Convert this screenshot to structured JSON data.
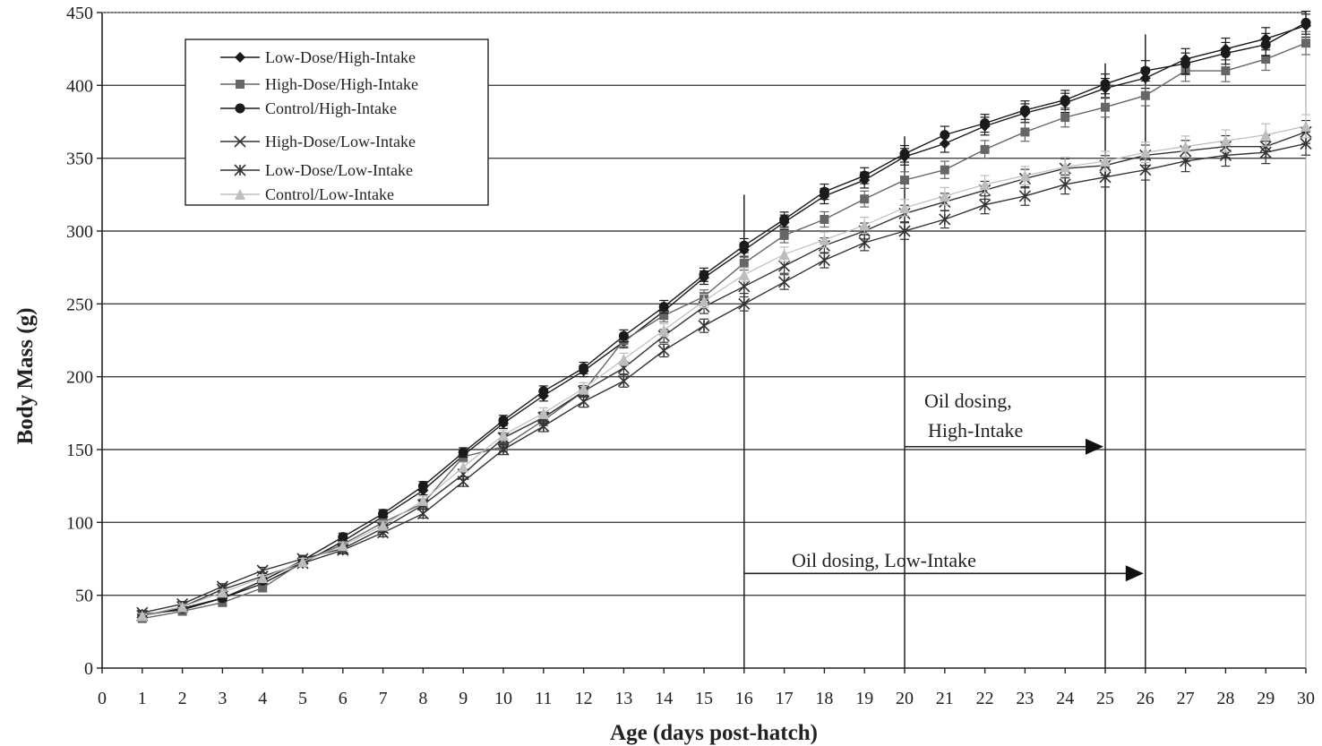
{
  "chart_data": {
    "type": "line",
    "title": "",
    "xlabel": "Age (days post-hatch)",
    "ylabel": "Body Mass (g)",
    "xlim": [
      0,
      30
    ],
    "ylim": [
      0,
      450
    ],
    "x_ticks": [
      0,
      1,
      2,
      3,
      4,
      5,
      6,
      7,
      8,
      9,
      10,
      11,
      12,
      13,
      14,
      15,
      16,
      17,
      18,
      19,
      20,
      21,
      22,
      23,
      24,
      25,
      26,
      27,
      28,
      29,
      30
    ],
    "y_ticks": [
      0,
      50,
      100,
      150,
      200,
      250,
      300,
      350,
      400,
      450
    ],
    "grid": "horizontal",
    "legend_position": "top-left",
    "x": [
      1,
      2,
      3,
      4,
      5,
      6,
      7,
      8,
      9,
      10,
      11,
      12,
      13,
      14,
      15,
      16,
      17,
      18,
      19,
      20,
      21,
      22,
      23,
      24,
      25,
      26,
      27,
      28,
      29,
      30
    ],
    "series": [
      {
        "name": "Low-Dose/High-Intake",
        "marker": "diamond",
        "color": "#1a1a1a",
        "values": [
          37,
          40,
          48,
          58,
          72,
          87,
          104,
          122,
          146,
          168,
          187,
          204,
          224,
          245,
          268,
          287,
          306,
          324,
          335,
          351,
          360,
          372,
          381,
          388,
          398,
          405,
          418,
          425,
          432,
          441
        ]
      },
      {
        "name": "High-Dose/High-Intake",
        "marker": "square",
        "color": "#666666",
        "values": [
          34,
          39,
          45,
          55,
          73,
          85,
          100,
          113,
          145,
          152,
          170,
          190,
          225,
          242,
          255,
          278,
          297,
          308,
          322,
          335,
          342,
          356,
          368,
          378,
          385,
          393,
          410,
          410,
          418,
          429
        ]
      },
      {
        "name": "Control/High-Intake",
        "marker": "circle",
        "color": "#1a1a1a",
        "values": [
          36,
          41,
          48,
          60,
          74,
          90,
          106,
          125,
          148,
          170,
          190,
          206,
          228,
          248,
          270,
          290,
          308,
          327,
          338,
          353,
          366,
          374,
          383,
          390,
          401,
          410,
          415,
          422,
          428,
          443
        ]
      },
      {
        "name": "High-Dose/Low-Intake",
        "marker": "x",
        "color": "#333333",
        "values": [
          38,
          44,
          56,
          67,
          75,
          82,
          96,
          112,
          133,
          158,
          172,
          190,
          206,
          228,
          248,
          262,
          276,
          290,
          300,
          312,
          320,
          328,
          336,
          343,
          345,
          352,
          355,
          358,
          358,
          368
        ]
      },
      {
        "name": "Low-Dose/Low-Intake",
        "marker": "asterisk",
        "color": "#333333",
        "values": [
          36,
          42,
          54,
          63,
          72,
          81,
          93,
          106,
          128,
          150,
          166,
          183,
          197,
          218,
          235,
          250,
          265,
          280,
          292,
          300,
          308,
          318,
          324,
          332,
          337,
          342,
          348,
          352,
          354,
          360
        ]
      },
      {
        "name": "Control/Low-Intake",
        "marker": "triangle",
        "color": "#bdbdbd",
        "values": [
          36,
          42,
          52,
          62,
          73,
          84,
          98,
          115,
          138,
          160,
          175,
          192,
          212,
          232,
          252,
          270,
          284,
          294,
          304,
          316,
          324,
          332,
          338,
          344,
          348,
          354,
          358,
          362,
          366,
          372
        ]
      }
    ],
    "reference_lines_x": [
      16,
      20,
      25,
      26
    ],
    "annotations": [
      {
        "text": "Oil dosing,",
        "x_start": 20,
        "x_end": 25,
        "y": 152
      },
      {
        "text": "High-Intake",
        "x_start": 20,
        "x_end": 25,
        "y": 152
      },
      {
        "text": "Oil dosing, Low-Intake",
        "x_start": 16,
        "x_end": 26,
        "y": 65
      }
    ]
  }
}
